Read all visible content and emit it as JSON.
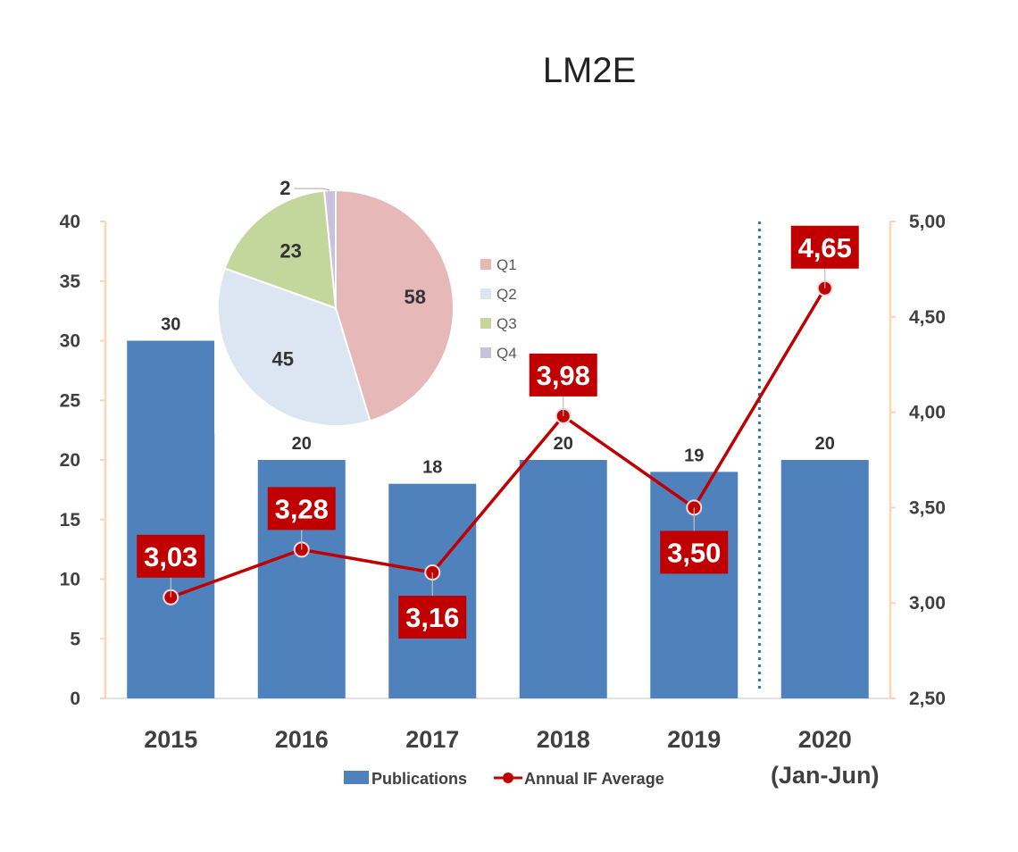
{
  "chart_data": [
    {
      "type": "bar",
      "title": "LM2E",
      "categories": [
        "2015",
        "2016",
        "2017",
        "2018",
        "2019",
        "2020"
      ],
      "category_sublabels": [
        "",
        "",
        "",
        "",
        "",
        "(Jan-Jun)"
      ],
      "series": [
        {
          "name": "Publications",
          "type": "bar",
          "axis": "left",
          "values": [
            30,
            20,
            18,
            20,
            19,
            20
          ],
          "value_labels": [
            "30",
            "20",
            "18",
            "20",
            "19",
            "20"
          ],
          "color": "#4f81bd"
        },
        {
          "name": "Annual IF Average",
          "type": "line",
          "axis": "right",
          "values": [
            3.03,
            3.28,
            3.16,
            3.98,
            3.5,
            4.65
          ],
          "value_labels": [
            "3,03",
            "3,28",
            "3,16",
            "3,98",
            "3,50",
            "4,65"
          ],
          "color": "#c00000"
        }
      ],
      "y_left": {
        "lim": [
          0,
          40
        ],
        "ticks": [
          "0",
          "5",
          "10",
          "15",
          "20",
          "25",
          "30",
          "35",
          "40"
        ]
      },
      "y_right": {
        "lim": [
          2.5,
          5.0
        ],
        "ticks": [
          "2,50",
          "3,00",
          "3,50",
          "4,00",
          "4,50",
          "5,00"
        ]
      },
      "grid": false,
      "divider": "dotted line between 2019 and 2020",
      "legend_position": "bottom-center",
      "axis_line_color": "#fcd5b4"
    },
    {
      "type": "pie",
      "labels": [
        "Q1",
        "Q2",
        "Q3",
        "Q4"
      ],
      "values": [
        58,
        45,
        23,
        2
      ],
      "value_labels": [
        "58",
        "45",
        "23",
        "2"
      ],
      "colors": [
        "#e6b9b8",
        "#dce6f2",
        "#c3d69b",
        "#ccc1da"
      ],
      "legend_position": "right"
    }
  ]
}
